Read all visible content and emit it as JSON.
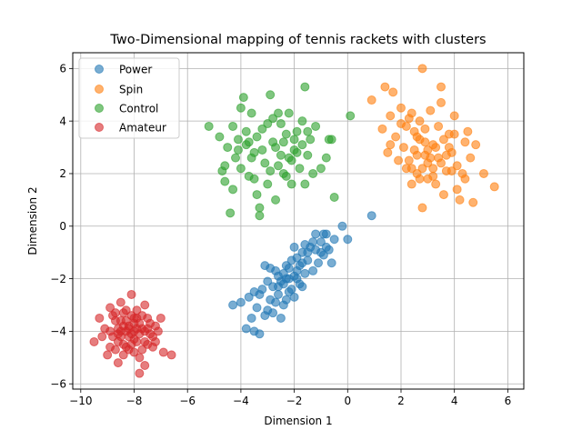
{
  "chart_data": {
    "type": "scatter",
    "title": "Two-Dimensional mapping of tennis rackets with clusters",
    "xlabel": "Dimension 1",
    "ylabel": "Dimension 2",
    "xlim": [
      -10.3,
      6.6
    ],
    "ylim": [
      -6.2,
      6.6
    ],
    "xticks": [
      -10,
      -8,
      -6,
      -4,
      -2,
      0,
      2,
      4,
      6
    ],
    "yticks": [
      -6,
      -4,
      -2,
      0,
      2,
      4,
      6
    ],
    "grid": true,
    "legend_position": "upper-left",
    "series": [
      {
        "name": "Power",
        "color": "#1f77b4",
        "points": [
          [
            -4.3,
            -3.0
          ],
          [
            -4.0,
            -2.9
          ],
          [
            -3.8,
            -3.9
          ],
          [
            -3.6,
            -3.5
          ],
          [
            -3.5,
            -4.0
          ],
          [
            -3.3,
            -4.1
          ],
          [
            -3.7,
            -2.7
          ],
          [
            -3.4,
            -3.1
          ],
          [
            -3.2,
            -2.4
          ],
          [
            -3.0,
            -3.2
          ],
          [
            -2.9,
            -2.8
          ],
          [
            -3.1,
            -1.5
          ],
          [
            -2.8,
            -3.3
          ],
          [
            -2.6,
            -2.6
          ],
          [
            -2.5,
            -3.5
          ],
          [
            -2.7,
            -1.7
          ],
          [
            -2.4,
            -2.2
          ],
          [
            -2.3,
            -2.8
          ],
          [
            -2.2,
            -1.6
          ],
          [
            -2.1,
            -2.4
          ],
          [
            -2.0,
            -1.9
          ],
          [
            -1.9,
            -1.2
          ],
          [
            -1.8,
            -2.2
          ],
          [
            -1.7,
            -1.0
          ],
          [
            -1.6,
            -1.8
          ],
          [
            -1.5,
            -1.3
          ],
          [
            -1.4,
            -0.8
          ],
          [
            -1.3,
            -1.7
          ],
          [
            -1.2,
            -0.9
          ],
          [
            -1.1,
            -1.4
          ],
          [
            -1.0,
            -0.6
          ],
          [
            -0.9,
            -1.1
          ],
          [
            -0.8,
            -0.3
          ],
          [
            -0.7,
            -0.9
          ],
          [
            -0.6,
            -1.4
          ],
          [
            -0.5,
            -0.5
          ],
          [
            -0.2,
            0.0
          ],
          [
            0.0,
            -0.5
          ],
          [
            0.9,
            0.4
          ],
          [
            -2.6,
            -1.9
          ],
          [
            -2.5,
            -2.1
          ],
          [
            -2.4,
            -1.8
          ],
          [
            -2.3,
            -2.0
          ],
          [
            -2.2,
            -2.5
          ],
          [
            -2.1,
            -1.3
          ],
          [
            -2.0,
            -2.7
          ],
          [
            -1.9,
            -2.0
          ],
          [
            -1.8,
            -1.5
          ],
          [
            -1.7,
            -2.3
          ],
          [
            -1.6,
            -0.7
          ],
          [
            -2.8,
            -2.3
          ],
          [
            -2.7,
            -2.9
          ],
          [
            -3.3,
            -2.6
          ],
          [
            -3.0,
            -2.1
          ],
          [
            -2.9,
            -1.6
          ],
          [
            -1.3,
            -0.6
          ],
          [
            -1.0,
            -1.0
          ],
          [
            -0.8,
            -0.8
          ],
          [
            -1.5,
            -1.0
          ],
          [
            -1.9,
            -1.7
          ],
          [
            -2.2,
            -2.0
          ],
          [
            -2.6,
            -2.3
          ],
          [
            -3.1,
            -3.4
          ],
          [
            -2.4,
            -3.0
          ],
          [
            -1.7,
            -1.4
          ],
          [
            -2.0,
            -0.8
          ],
          [
            -2.3,
            -1.5
          ],
          [
            -1.2,
            -0.3
          ],
          [
            -0.9,
            -0.3
          ],
          [
            -3.5,
            -2.5
          ]
        ]
      },
      {
        "name": "Spin",
        "color": "#ff7f0e",
        "points": [
          [
            0.9,
            4.8
          ],
          [
            1.3,
            3.7
          ],
          [
            1.4,
            5.3
          ],
          [
            1.5,
            2.8
          ],
          [
            1.6,
            4.2
          ],
          [
            1.7,
            5.1
          ],
          [
            1.8,
            3.4
          ],
          [
            1.9,
            2.5
          ],
          [
            2.0,
            4.5
          ],
          [
            2.1,
            3.0
          ],
          [
            2.2,
            2.2
          ],
          [
            2.3,
            4.1
          ],
          [
            2.4,
            1.6
          ],
          [
            2.5,
            3.6
          ],
          [
            2.6,
            2.7
          ],
          [
            2.7,
            4.0
          ],
          [
            2.8,
            0.7
          ],
          [
            2.9,
            3.2
          ],
          [
            3.0,
            2.4
          ],
          [
            3.1,
            4.4
          ],
          [
            3.2,
            1.9
          ],
          [
            3.3,
            3.0
          ],
          [
            3.4,
            2.6
          ],
          [
            3.5,
            4.7
          ],
          [
            3.6,
            1.2
          ],
          [
            3.7,
            2.1
          ],
          [
            3.8,
            3.5
          ],
          [
            3.9,
            2.8
          ],
          [
            4.0,
            4.2
          ],
          [
            4.1,
            2.3
          ],
          [
            4.2,
            1.0
          ],
          [
            4.3,
            2.0
          ],
          [
            4.4,
            3.2
          ],
          [
            4.5,
            3.6
          ],
          [
            4.6,
            2.6
          ],
          [
            4.7,
            0.9
          ],
          [
            4.8,
            3.1
          ],
          [
            5.1,
            2.0
          ],
          [
            5.5,
            1.5
          ],
          [
            2.8,
            6.0
          ],
          [
            3.5,
            5.3
          ],
          [
            2.4,
            4.3
          ],
          [
            2.7,
            3.3
          ],
          [
            3.0,
            2.9
          ],
          [
            3.2,
            2.2
          ],
          [
            2.6,
            2.0
          ],
          [
            3.4,
            3.8
          ],
          [
            3.6,
            3.3
          ],
          [
            2.9,
            3.7
          ],
          [
            3.1,
            2.6
          ],
          [
            3.3,
            1.6
          ],
          [
            2.5,
            2.9
          ],
          [
            2.2,
            3.8
          ],
          [
            3.7,
            2.7
          ],
          [
            3.9,
            2.1
          ],
          [
            4.1,
            1.4
          ],
          [
            2.0,
            3.9
          ],
          [
            2.3,
            2.5
          ],
          [
            3.8,
            3.0
          ],
          [
            2.6,
            3.4
          ],
          [
            2.8,
            2.2
          ],
          [
            3.0,
            1.8
          ],
          [
            4.4,
            1.8
          ],
          [
            4.0,
            3.5
          ],
          [
            3.5,
            2.4
          ],
          [
            2.9,
            2.7
          ],
          [
            1.6,
            3.1
          ],
          [
            2.7,
            1.8
          ],
          [
            3.2,
            3.1
          ],
          [
            2.4,
            2.2
          ]
        ]
      },
      {
        "name": "Control",
        "color": "#2ca02c",
        "points": [
          [
            -5.2,
            3.8
          ],
          [
            -4.8,
            3.4
          ],
          [
            -4.7,
            2.1
          ],
          [
            -4.6,
            1.7
          ],
          [
            -4.5,
            3.0
          ],
          [
            -4.4,
            0.5
          ],
          [
            -4.3,
            1.4
          ],
          [
            -4.2,
            2.6
          ],
          [
            -4.1,
            3.3
          ],
          [
            -4.0,
            2.2
          ],
          [
            -3.9,
            4.9
          ],
          [
            -3.8,
            3.1
          ],
          [
            -3.7,
            1.9
          ],
          [
            -3.6,
            4.3
          ],
          [
            -3.5,
            2.8
          ],
          [
            -3.4,
            1.2
          ],
          [
            -3.3,
            0.4
          ],
          [
            -3.2,
            3.7
          ],
          [
            -3.1,
            2.4
          ],
          [
            -3.0,
            1.6
          ],
          [
            -2.9,
            5.0
          ],
          [
            -2.8,
            3.2
          ],
          [
            -2.7,
            1.0
          ],
          [
            -2.6,
            4.3
          ],
          [
            -2.5,
            2.7
          ],
          [
            -2.4,
            2.0
          ],
          [
            -2.3,
            3.5
          ],
          [
            -2.2,
            4.3
          ],
          [
            -2.1,
            1.6
          ],
          [
            -2.0,
            2.9
          ],
          [
            -1.9,
            3.6
          ],
          [
            -1.8,
            2.2
          ],
          [
            -1.7,
            4.0
          ],
          [
            -1.6,
            1.6
          ],
          [
            -1.5,
            2.7
          ],
          [
            -1.4,
            3.3
          ],
          [
            -1.3,
            2.0
          ],
          [
            -1.2,
            3.8
          ],
          [
            -1.0,
            2.2
          ],
          [
            -0.8,
            2.6
          ],
          [
            -0.6,
            3.3
          ],
          [
            -0.5,
            1.1
          ],
          [
            0.1,
            4.2
          ],
          [
            -1.6,
            5.3
          ],
          [
            -3.3,
            0.7
          ],
          [
            -4.0,
            4.5
          ],
          [
            -3.8,
            3.6
          ],
          [
            -2.9,
            2.1
          ],
          [
            -2.5,
            3.9
          ],
          [
            -3.6,
            2.6
          ],
          [
            -2.7,
            3.0
          ],
          [
            -2.1,
            2.5
          ],
          [
            -3.4,
            3.4
          ],
          [
            -2.8,
            4.1
          ],
          [
            -1.9,
            2.8
          ],
          [
            -3.2,
            2.9
          ],
          [
            -2.4,
            3.2
          ],
          [
            -4.3,
            3.8
          ],
          [
            -3.0,
            3.9
          ],
          [
            -2.2,
            2.6
          ],
          [
            -1.7,
            3.1
          ],
          [
            -2.6,
            2.3
          ],
          [
            -3.7,
            3.2
          ],
          [
            -4.1,
            2.9
          ],
          [
            -2.0,
            3.3
          ],
          [
            -3.5,
            1.8
          ],
          [
            -2.3,
            1.9
          ],
          [
            -1.5,
            3.6
          ],
          [
            -0.7,
            3.3
          ],
          [
            -4.6,
            2.3
          ]
        ]
      },
      {
        "name": "Amateur",
        "color": "#d62728",
        "points": [
          [
            -9.5,
            -4.4
          ],
          [
            -9.3,
            -3.5
          ],
          [
            -9.1,
            -3.9
          ],
          [
            -9.0,
            -4.9
          ],
          [
            -8.9,
            -3.1
          ],
          [
            -8.8,
            -4.2
          ],
          [
            -8.7,
            -3.6
          ],
          [
            -8.6,
            -5.2
          ],
          [
            -8.5,
            -4.0
          ],
          [
            -8.4,
            -3.3
          ],
          [
            -8.3,
            -4.6
          ],
          [
            -8.2,
            -3.8
          ],
          [
            -8.1,
            -2.6
          ],
          [
            -8.0,
            -4.3
          ],
          [
            -7.9,
            -3.5
          ],
          [
            -7.8,
            -5.0
          ],
          [
            -7.7,
            -3.9
          ],
          [
            -7.6,
            -3.0
          ],
          [
            -7.5,
            -4.5
          ],
          [
            -7.4,
            -3.7
          ],
          [
            -7.3,
            -4.2
          ],
          [
            -7.2,
            -3.8
          ],
          [
            -7.0,
            -3.5
          ],
          [
            -6.9,
            -4.8
          ],
          [
            -6.6,
            -4.9
          ],
          [
            -7.8,
            -5.6
          ],
          [
            -8.5,
            -2.9
          ],
          [
            -7.6,
            -5.3
          ],
          [
            -8.3,
            -3.6
          ],
          [
            -8.1,
            -4.1
          ],
          [
            -7.9,
            -4.4
          ],
          [
            -8.6,
            -3.9
          ],
          [
            -8.2,
            -4.7
          ],
          [
            -7.7,
            -3.4
          ],
          [
            -8.4,
            -4.5
          ],
          [
            -8.0,
            -3.7
          ],
          [
            -8.7,
            -4.7
          ],
          [
            -7.5,
            -3.9
          ],
          [
            -8.8,
            -3.4
          ],
          [
            -7.3,
            -4.6
          ],
          [
            -8.9,
            -4.0
          ],
          [
            -8.5,
            -4.2
          ],
          [
            -8.3,
            -3.2
          ],
          [
            -7.8,
            -4.1
          ],
          [
            -8.1,
            -3.4
          ],
          [
            -7.6,
            -4.4
          ],
          [
            -8.0,
            -4.8
          ],
          [
            -8.6,
            -4.4
          ],
          [
            -7.4,
            -4.1
          ],
          [
            -7.9,
            -3.2
          ],
          [
            -8.2,
            -3.9
          ],
          [
            -8.4,
            -4.9
          ],
          [
            -7.7,
            -4.7
          ],
          [
            -9.2,
            -4.2
          ],
          [
            -7.1,
            -4.0
          ],
          [
            -8.0,
            -3.5
          ],
          [
            -8.3,
            -4.0
          ],
          [
            -7.8,
            -3.7
          ],
          [
            -8.1,
            -4.5
          ],
          [
            -8.7,
            -3.3
          ],
          [
            -7.5,
            -3.5
          ],
          [
            -7.2,
            -4.4
          ],
          [
            -8.9,
            -4.6
          ],
          [
            -8.5,
            -3.6
          ],
          [
            -7.6,
            -4.0
          ],
          [
            -8.2,
            -4.2
          ],
          [
            -7.9,
            -3.9
          ],
          [
            -8.6,
            -4.1
          ],
          [
            -8.0,
            -4.0
          ],
          [
            -8.4,
            -3.8
          ]
        ]
      }
    ]
  }
}
